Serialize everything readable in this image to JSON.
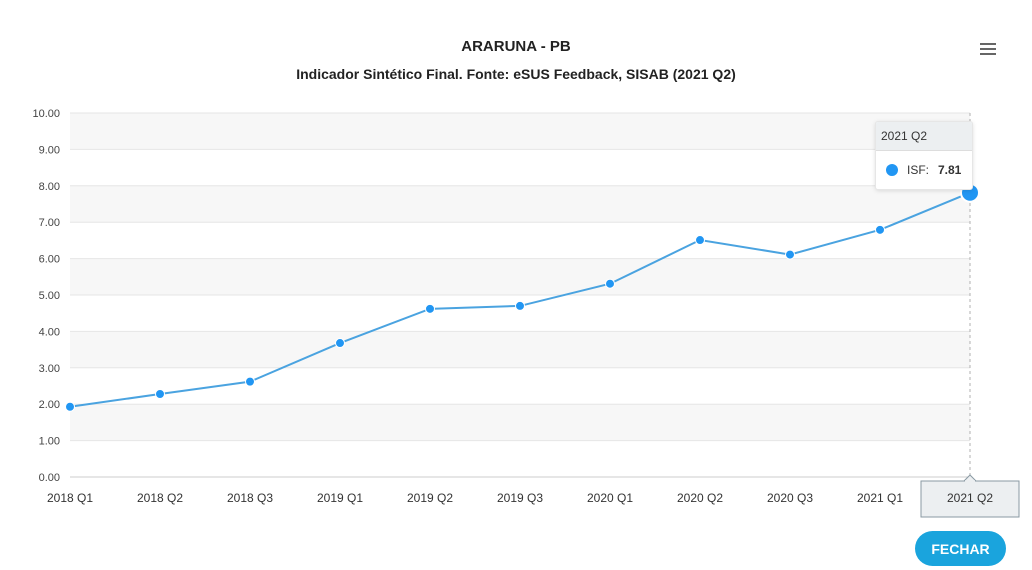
{
  "header": {
    "title": "ARARUNA - PB",
    "subtitle": "Indicador Sintético Final. Fonte: eSUS Feedback, SISAB (2021 Q2)"
  },
  "menu": {
    "icon": "hamburger-menu-icon"
  },
  "chart_data": {
    "type": "line",
    "categories": [
      "2018 Q1",
      "2018 Q2",
      "2018 Q3",
      "2019 Q1",
      "2019 Q2",
      "2019 Q3",
      "2020 Q1",
      "2020 Q2",
      "2020 Q3",
      "2021 Q1",
      "2021 Q2"
    ],
    "series": [
      {
        "name": "ISF",
        "values": [
          1.93,
          2.28,
          2.62,
          3.68,
          4.62,
          4.7,
          5.31,
          6.51,
          6.11,
          6.79,
          7.81
        ],
        "color": "#2196f3"
      }
    ],
    "yticks": [
      "0.00",
      "1.00",
      "2.00",
      "3.00",
      "4.00",
      "5.00",
      "6.00",
      "7.00",
      "8.00",
      "9.00",
      "10.00"
    ],
    "ylim": [
      0,
      10
    ],
    "grid": true,
    "band_color": "#f7f7f7",
    "line_color": "#4aa3e0",
    "highlighted_category": "2021 Q2"
  },
  "tooltip": {
    "header": "2021 Q2",
    "label": "ISF:",
    "value": "7.81"
  },
  "footer": {
    "close_label": "FECHAR",
    "button_color": "#1aa4dd"
  }
}
